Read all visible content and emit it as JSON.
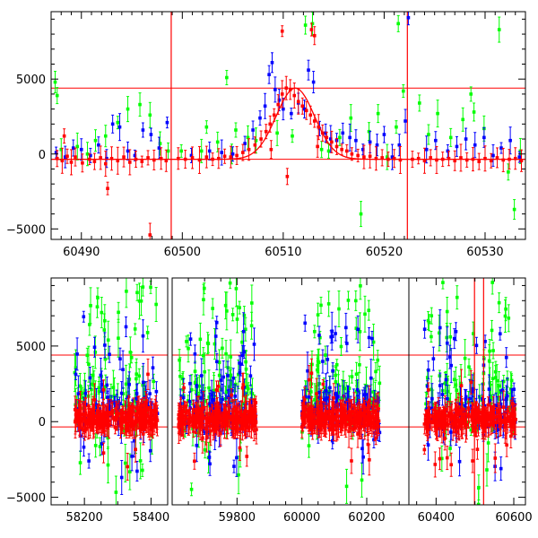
{
  "chart_data": [
    {
      "type": "scatter",
      "panel": "top",
      "xlim": [
        60487,
        60534
      ],
      "ylim": [
        -5700,
        9500
      ],
      "x_ticks": [
        60490,
        60500,
        60510,
        60520,
        60530
      ],
      "x_tick_labels": [
        "60490",
        "60500",
        "60510",
        "60520",
        "60530"
      ],
      "y_ticks": [
        -5000,
        0,
        5000
      ],
      "y_tick_labels": [
        "−5000",
        "0",
        "5000"
      ],
      "hlines": [
        4400,
        -350
      ],
      "vlines": [
        60498.9,
        60522.3
      ],
      "model_curve": {
        "color": "#ff0000",
        "base": -350,
        "peak": 4400,
        "peak_x": 60511.2,
        "sigma": 1.9
      },
      "series": [
        {
          "color": "#ff0000",
          "points": [
            [
              60487.6,
              -300
            ],
            [
              60488.1,
              -450
            ],
            [
              60488.6,
              -150
            ],
            [
              60489.0,
              -550
            ],
            [
              60489.4,
              -200
            ],
            [
              60490.1,
              -600
            ],
            [
              60490.8,
              -350
            ],
            [
              60491.3,
              -500
            ],
            [
              60491.9,
              -250
            ],
            [
              60492.4,
              -650
            ],
            [
              60493.0,
              -300
            ],
            [
              60493.6,
              -450
            ],
            [
              60494.2,
              -200
            ],
            [
              60494.8,
              -550
            ],
            [
              60495.4,
              -350
            ],
            [
              60496.0,
              -500
            ],
            [
              60496.6,
              -250
            ],
            [
              60497.2,
              -400
            ],
            [
              60497.9,
              -300
            ],
            [
              60498.4,
              -450
            ],
            [
              60499.6,
              -300
            ],
            [
              60500.3,
              -350
            ],
            [
              60501.0,
              -250
            ],
            [
              60501.7,
              -400
            ],
            [
              60502.4,
              -200
            ],
            [
              60503.0,
              -350
            ],
            [
              60503.6,
              -300
            ],
            [
              60504.2,
              -150
            ],
            [
              60504.8,
              -200
            ],
            [
              60505.4,
              -100
            ],
            [
              60506.0,
              100
            ],
            [
              60506.6,
              300
            ],
            [
              60507.2,
              600
            ],
            [
              60507.8,
              1000
            ],
            [
              60508.3,
              1500
            ],
            [
              60508.7,
              2000
            ],
            [
              60509.1,
              2600
            ],
            [
              60509.5,
              3300
            ],
            [
              60509.9,
              4000
            ],
            [
              60510.3,
              4400
            ],
            [
              60510.7,
              4300
            ],
            [
              60511.1,
              3900
            ],
            [
              60511.5,
              3500
            ],
            [
              60511.9,
              3200
            ],
            [
              60512.3,
              2900
            ],
            [
              60512.7,
              2600
            ],
            [
              60513.1,
              2200
            ],
            [
              60513.5,
              1800
            ],
            [
              60513.9,
              1400
            ],
            [
              60514.3,
              1100
            ],
            [
              60514.8,
              800
            ],
            [
              60515.3,
              500
            ],
            [
              60515.8,
              300
            ],
            [
              60516.3,
              200
            ],
            [
              60516.8,
              0
            ],
            [
              60517.4,
              -100
            ],
            [
              60518.0,
              -200
            ],
            [
              60518.6,
              -150
            ],
            [
              60519.2,
              -300
            ],
            [
              60519.8,
              -250
            ],
            [
              60520.4,
              -350
            ],
            [
              60521.0,
              -300
            ],
            [
              60521.6,
              -400
            ],
            [
              60522.8,
              -350
            ],
            [
              60523.4,
              -300
            ],
            [
              60524.0,
              -450
            ],
            [
              60524.6,
              -250
            ],
            [
              60525.2,
              -400
            ],
            [
              60525.8,
              -350
            ],
            [
              60526.4,
              -300
            ],
            [
              60527.0,
              -450
            ],
            [
              60527.6,
              -250
            ],
            [
              60528.2,
              -400
            ],
            [
              60528.8,
              -350
            ],
            [
              60529.4,
              -500
            ],
            [
              60530.0,
              -300
            ],
            [
              60530.6,
              -450
            ],
            [
              60531.2,
              -250
            ],
            [
              60531.8,
              -400
            ],
            [
              60532.4,
              -350
            ],
            [
              60533.0,
              -300
            ],
            [
              60533.6,
              -450
            ],
            [
              60488.3,
              1200
            ],
            [
              60492.6,
              -2300
            ],
            [
              60496.8,
              -5400
            ],
            [
              60509.9,
              8200
            ],
            [
              60512.8,
              8300
            ],
            [
              60513.1,
              7900
            ],
            [
              60508.8,
              300
            ],
            [
              60510.4,
              -1500
            ],
            [
              60513.4,
              500
            ]
          ]
        },
        {
          "color": "#0000ff",
          "points": [
            [
              60487.5,
              100
            ],
            [
              60488.4,
              -200
            ],
            [
              60489.2,
              400
            ],
            [
              60490.0,
              300
            ],
            [
              60490.9,
              -100
            ],
            [
              60491.7,
              600
            ],
            [
              60492.5,
              -300
            ],
            [
              60493.1,
              2000
            ],
            [
              60493.8,
              1800
            ],
            [
              60494.6,
              200
            ],
            [
              60495.3,
              -100
            ],
            [
              60496.1,
              1600
            ],
            [
              60496.9,
              1300
            ],
            [
              60497.7,
              400
            ],
            [
              60498.5,
              2100
            ],
            [
              60505.0,
              0
            ],
            [
              60506.2,
              700
            ],
            [
              60507.0,
              1600
            ],
            [
              60507.7,
              2400
            ],
            [
              60508.2,
              3200
            ],
            [
              60508.6,
              5300
            ],
            [
              60508.9,
              6100
            ],
            [
              60509.2,
              4300
            ],
            [
              60509.6,
              3600
            ],
            [
              60510.0,
              3000
            ],
            [
              60510.8,
              2700
            ],
            [
              60511.5,
              3400
            ],
            [
              60512.1,
              3000
            ],
            [
              60512.5,
              5600
            ],
            [
              60513.0,
              4800
            ],
            [
              60513.6,
              1700
            ],
            [
              60514.2,
              1400
            ],
            [
              60514.7,
              1000
            ],
            [
              60515.3,
              900
            ],
            [
              60515.9,
              1400
            ],
            [
              60516.6,
              1100
            ],
            [
              60517.2,
              900
            ],
            [
              60517.9,
              300
            ],
            [
              60518.6,
              800
            ],
            [
              60519.3,
              600
            ],
            [
              60520.0,
              1300
            ],
            [
              60520.8,
              -200
            ],
            [
              60521.5,
              600
            ],
            [
              60522.4,
              9100
            ],
            [
              60522.1,
              2200
            ],
            [
              60524.2,
              300
            ],
            [
              60525.1,
              900
            ],
            [
              60526.3,
              200
            ],
            [
              60527.2,
              500
            ],
            [
              60528.1,
              1000
            ],
            [
              60529.0,
              600
            ],
            [
              60529.9,
              1100
            ],
            [
              60530.8,
              -100
            ],
            [
              60531.6,
              400
            ],
            [
              60532.5,
              900
            ],
            [
              60533.4,
              -200
            ],
            [
              60500.9,
              -100
            ],
            [
              60502.7,
              200
            ],
            [
              60503.9,
              100
            ]
          ]
        },
        {
          "color": "#00ff00",
          "points": [
            [
              60487.4,
              4800
            ],
            [
              60487.6,
              3900
            ],
            [
              60488.0,
              300
            ],
            [
              60489.6,
              500
            ],
            [
              60491.4,
              900
            ],
            [
              60492.4,
              1200
            ],
            [
              60493.6,
              2100
            ],
            [
              60494.6,
              3000
            ],
            [
              60495.8,
              3300
            ],
            [
              60496.8,
              2600
            ],
            [
              60497.8,
              700
            ],
            [
              60498.6,
              200
            ],
            [
              60501.9,
              200
            ],
            [
              60502.4,
              1800
            ],
            [
              60503.5,
              800
            ],
            [
              60504.4,
              5100
            ],
            [
              60505.3,
              1600
            ],
            [
              60506.5,
              1100
            ],
            [
              60507.3,
              900
            ],
            [
              60509.4,
              1400
            ],
            [
              60510.9,
              1200
            ],
            [
              60512.2,
              8600
            ],
            [
              60512.9,
              8700
            ],
            [
              60513.8,
              300
            ],
            [
              60514.5,
              200
            ],
            [
              60515.6,
              1100
            ],
            [
              60516.7,
              2400
            ],
            [
              60517.7,
              -4000
            ],
            [
              60518.5,
              1500
            ],
            [
              60519.4,
              2700
            ],
            [
              60520.3,
              -200
            ],
            [
              60521.2,
              1800
            ],
            [
              60521.9,
              4200
            ],
            [
              60521.4,
              8700
            ],
            [
              60523.5,
              3400
            ],
            [
              60524.4,
              1300
            ],
            [
              60525.3,
              2700
            ],
            [
              60526.6,
              1100
            ],
            [
              60527.8,
              2300
            ],
            [
              60528.6,
              4000
            ],
            [
              60528.9,
              2800
            ],
            [
              60529.9,
              1700
            ],
            [
              60531.4,
              8300
            ],
            [
              60532.3,
              -1200
            ],
            [
              60532.9,
              -3700
            ],
            [
              60533.5,
              200
            ],
            [
              60490.6,
              0
            ],
            [
              60499.9,
              200
            ],
            [
              60504.9,
              0
            ]
          ]
        }
      ]
    },
    {
      "type": "scatter",
      "panel": "bottom",
      "xlim": [
        58100,
        60630
      ],
      "ylim": [
        -5500,
        9500
      ],
      "x_ticks": [
        58200,
        58400,
        59800,
        60000,
        60200,
        60400,
        60600
      ],
      "x_tick_labels": [
        "58200",
        "58400",
        "59800",
        "60000",
        "60200",
        "60400",
        "60600"
      ],
      "y_ticks": [
        -5000,
        0,
        5000
      ],
      "y_tick_labels": [
        "−5000",
        "0",
        "5000"
      ],
      "hlines": [
        4400,
        -350
      ],
      "vlines": [
        60498.9,
        60522.3
      ],
      "segments": [
        {
          "xlim": [
            58100,
            58450
          ],
          "clusters": [
            [
              58170,
              58420
            ]
          ]
        },
        {
          "xlim": [
            59600,
            60330
          ],
          "clusters": [
            [
              59620,
              59860
            ],
            [
              60000,
              60240
            ]
          ]
        },
        {
          "xlim": [
            60330,
            60630
          ],
          "clusters": [
            [
              60370,
              60605
            ]
          ]
        }
      ],
      "series_colors": [
        "#ff0000",
        "#0000ff",
        "#00ff00"
      ]
    }
  ]
}
